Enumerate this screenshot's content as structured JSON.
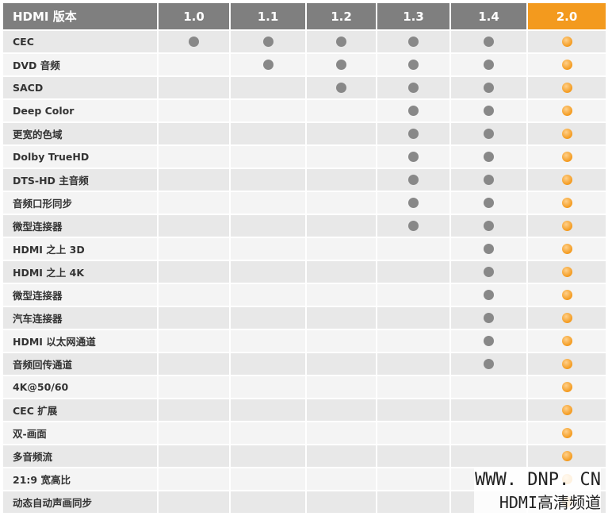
{
  "header": {
    "label": "HDMI 版本",
    "versions": [
      "1.0",
      "1.1",
      "1.2",
      "1.3",
      "1.4",
      "2.0"
    ],
    "highlight": "2.0"
  },
  "colors": {
    "header": "#7f7f7f",
    "highlight": "#f39a1e",
    "dot": "#888888"
  },
  "features": [
    {
      "name": "CEC",
      "since": 0
    },
    {
      "name": "DVD 音频",
      "since": 1
    },
    {
      "name": "SACD",
      "since": 2
    },
    {
      "name": "Deep Color",
      "since": 3
    },
    {
      "name": "更宽的色域",
      "since": 3
    },
    {
      "name": "Dolby TrueHD",
      "since": 3
    },
    {
      "name": "DTS-HD 主音频",
      "since": 3
    },
    {
      "name": "音频口形同步",
      "since": 3
    },
    {
      "name": "微型连接器",
      "since": 3
    },
    {
      "name": "HDMI 之上 3D",
      "since": 4
    },
    {
      "name": "HDMI 之上 4K",
      "since": 4
    },
    {
      "name": "微型连接器",
      "since": 4
    },
    {
      "name": "汽车连接器",
      "since": 4
    },
    {
      "name": "HDMI 以太网通道",
      "since": 4
    },
    {
      "name": "音频回传通道",
      "since": 4
    },
    {
      "name": "4K@50/60",
      "since": 5
    },
    {
      "name": "CEC 扩展",
      "since": 5
    },
    {
      "name": "双-画面",
      "since": 5
    },
    {
      "name": "多音频流",
      "since": 5
    },
    {
      "name": "21:9 宽高比",
      "since": 5
    },
    {
      "name": "动态自动声画同步",
      "since": 5
    }
  ],
  "watermark": {
    "line1": "WWW. DNP. CN",
    "line2": "HDMI高清频道"
  }
}
